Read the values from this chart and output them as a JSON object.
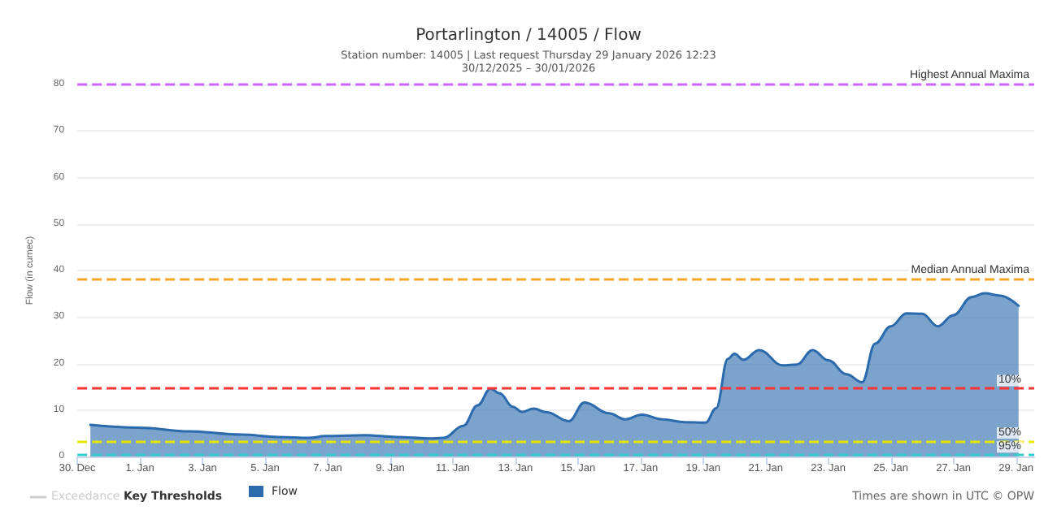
{
  "chart_data": {
    "type": "area",
    "title": "Portarlington / 14005 / Flow",
    "subtitle": "Station number: 14005 | Last request Thursday 29 January 2026 12:23\n30/12/2025 – 30/01/2026",
    "ylabel": "Flow (in cumec)",
    "x": [
      "2025-12-30T10:00",
      "2025-12-31T23:00",
      "2026-01-02T14:00",
      "2026-01-04T06:00",
      "2026-01-05T10:00",
      "2026-01-06T10:00",
      "2026-01-06T22:00",
      "2026-01-08T05:00",
      "2026-01-09T05:00",
      "2026-01-10T05:00",
      "2026-01-10T17:00",
      "2026-01-11T08:00",
      "2026-01-11T19:00",
      "2026-01-12T05:00",
      "2026-01-12T12:00",
      "2026-01-12T22:00",
      "2026-01-13T05:00",
      "2026-01-13T14:00",
      "2026-01-14T00:00",
      "2026-01-14T17:00",
      "2026-01-15T05:00",
      "2026-01-16T00:00",
      "2026-01-16T12:00",
      "2026-01-17T01:00",
      "2026-01-17T17:00",
      "2026-01-18T10:00",
      "2026-01-19T02:00",
      "2026-01-19T10:00",
      "2026-01-19T19:00",
      "2026-01-20T00:00",
      "2026-01-20T07:00",
      "2026-01-20T19:00",
      "2026-01-21T13:00",
      "2026-01-22T00:00",
      "2026-01-22T12:00",
      "2026-01-23T00:00",
      "2026-01-23T14:00",
      "2026-01-24T02:00",
      "2026-01-24T12:00",
      "2026-01-25T00:00",
      "2026-01-25T12:00",
      "2026-01-26T00:00",
      "2026-01-26T12:00",
      "2026-01-27T00:00",
      "2026-01-27T14:00",
      "2026-01-28T00:00",
      "2026-01-28T12:00",
      "2026-01-29T02:00"
    ],
    "series": [
      {
        "name": "Flow",
        "color": "#2a6aad",
        "values": [
          6.8,
          6.2,
          5.4,
          4.7,
          4.2,
          4.0,
          4.4,
          4.6,
          4.2,
          3.9,
          4.0,
          6.6,
          11.0,
          14.6,
          13.6,
          10.7,
          9.6,
          10.3,
          9.5,
          7.6,
          11.6,
          9.3,
          8.0,
          9.0,
          8.0,
          7.4,
          7.3,
          10.4,
          21.0,
          22.1,
          20.8,
          22.9,
          19.6,
          19.8,
          22.9,
          20.7,
          17.7,
          16.0,
          24.3,
          28.0,
          30.8,
          30.7,
          28.0,
          30.4,
          34.3,
          35.1,
          34.6,
          32.4
        ]
      }
    ],
    "xlim": [
      "2025-12-30",
      "2026-01-29T14:00"
    ],
    "xticks": [
      {
        "value": "2025-12-30",
        "label": "30. Dec"
      },
      {
        "value": "2026-01-01",
        "label": "1. Jan"
      },
      {
        "value": "2026-01-03",
        "label": "3. Jan"
      },
      {
        "value": "2026-01-05",
        "label": "5. Jan"
      },
      {
        "value": "2026-01-07",
        "label": "7. Jan"
      },
      {
        "value": "2026-01-09",
        "label": "9. Jan"
      },
      {
        "value": "2026-01-11",
        "label": "11. Jan"
      },
      {
        "value": "2026-01-13",
        "label": "13. Jan"
      },
      {
        "value": "2026-01-15",
        "label": "15. Jan"
      },
      {
        "value": "2026-01-17",
        "label": "17. Jan"
      },
      {
        "value": "2026-01-19",
        "label": "19. Jan"
      },
      {
        "value": "2026-01-21",
        "label": "21. Jan"
      },
      {
        "value": "2026-01-23",
        "label": "23. Jan"
      },
      {
        "value": "2026-01-25",
        "label": "25. Jan"
      },
      {
        "value": "2026-01-27",
        "label": "27. Jan"
      },
      {
        "value": "2026-01-29",
        "label": "29. Jan"
      }
    ],
    "ylim": [
      0,
      80
    ],
    "yticks": [
      0,
      10,
      20,
      30,
      40,
      50,
      60,
      70,
      80
    ],
    "grid": "y",
    "legend": "bottom left",
    "marker": "none",
    "line_style": "solid",
    "ref_lines": [
      {
        "axis": "y",
        "value": 80,
        "label": "Highest Annual Maxima",
        "color": "#cc66ff",
        "line_style": "dashed"
      },
      {
        "axis": "y",
        "value": 38,
        "label": "Median Annual Maxima",
        "color": "#f5a623",
        "line_style": "dashed"
      },
      {
        "axis": "y",
        "value": 14.6,
        "color": "#ff3333",
        "line_style": "dashed"
      },
      {
        "axis": "y",
        "value": 3.3,
        "color": "#e6e600",
        "line_style": "dashed"
      },
      {
        "axis": "y",
        "value": 0.3,
        "color": "#33cccc",
        "line_style": "dashed"
      }
    ],
    "annotations": [
      "Exceedance",
      "Key Thresholds",
      "Times are shown in UTC © OPW",
      {
        "text": "10%",
        "x": "2026-01-29T14:00",
        "y": 14.6
      },
      {
        "text": "50%",
        "x": "2026-01-29T14:00",
        "y": 3.3
      },
      {
        "text": "95%",
        "x": "2026-01-29T14:00",
        "y": 0.3
      }
    ]
  }
}
